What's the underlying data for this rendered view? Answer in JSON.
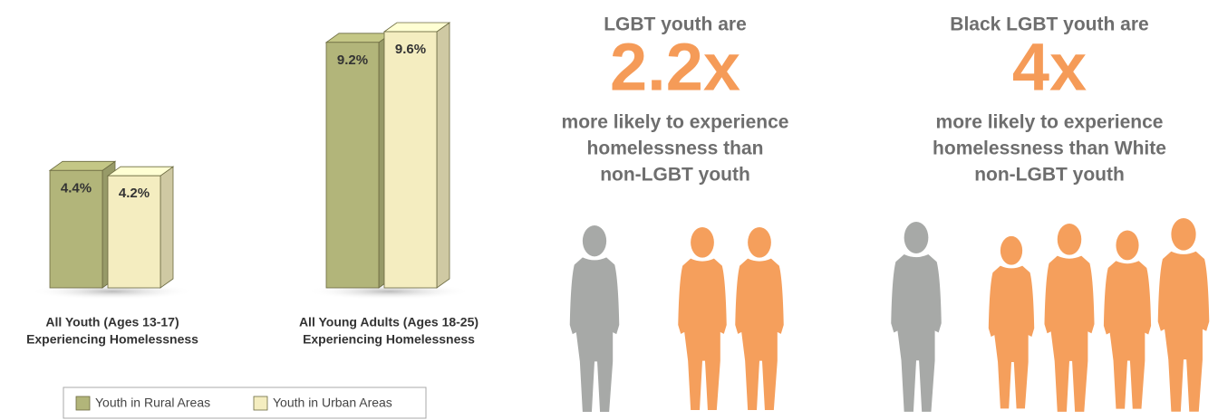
{
  "chart_data": {
    "type": "bar3d",
    "categories": [
      [
        "All Youth (Ages 13-17)",
        "Experiencing Homelessness"
      ],
      [
        "All Young Adults (Ages 18-25)",
        "Experiencing Homelessness"
      ]
    ],
    "series": [
      {
        "name": "Youth in Rural Areas",
        "color": "#b2b57a",
        "values": [
          4.4,
          9.2
        ],
        "value_labels": [
          "4.4%",
          "9.2%"
        ]
      },
      {
        "name": "Youth in Urban Areas",
        "color": "#f4edc0",
        "values": [
          4.2,
          9.6
        ],
        "value_labels": [
          "4.2%",
          "9.6%"
        ]
      }
    ]
  },
  "stats": [
    {
      "lead": "LGBT youth are",
      "figure": "2.2x",
      "lines": [
        "more likely to experience",
        "homelessness than",
        "non-LGBT youth"
      ]
    },
    {
      "lead": "Black LGBT youth are",
      "figure": "4x",
      "lines": [
        "more likely to experience",
        "homelessness than White",
        "non-LGBT youth"
      ]
    }
  ]
}
